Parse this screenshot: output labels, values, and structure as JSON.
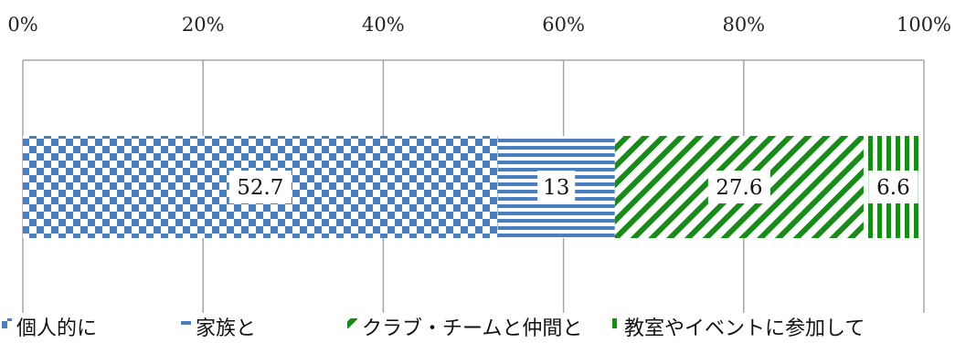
{
  "chart_data": {
    "type": "bar",
    "orientation": "horizontal",
    "stacked": true,
    "percent_stacked": true,
    "xlim": [
      0,
      100
    ],
    "x_ticks": [
      "0%",
      "20%",
      "40%",
      "60%",
      "80%",
      "100%"
    ],
    "grid": true,
    "legend_position": "bottom",
    "series": [
      {
        "name": "個人的に",
        "value": 52.7,
        "label": "52.7",
        "color": "#4a7ebf",
        "pattern": "checker"
      },
      {
        "name": "家族と",
        "value": 13,
        "label": "13",
        "color": "#4a7ebf",
        "pattern": "horizontal-stripes"
      },
      {
        "name": "クラブ・チームと仲間と",
        "value": 27.6,
        "label": "27.6",
        "color": "#1a8a1a",
        "pattern": "diagonal-stripes"
      },
      {
        "name": "教室やイベントに参加して",
        "value": 6.6,
        "label": "6.6",
        "color": "#1a8a1a",
        "pattern": "vertical-stripes"
      }
    ]
  }
}
